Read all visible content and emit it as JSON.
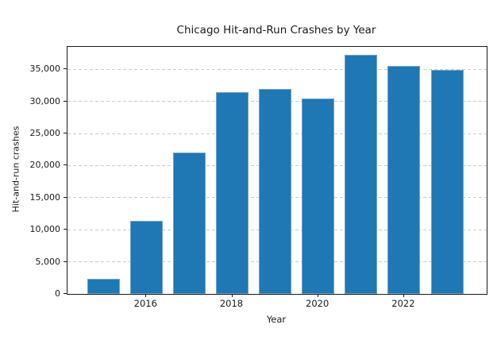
{
  "chart_data": {
    "type": "bar",
    "title": "Chicago Hit-and-Run Crashes by Year",
    "xlabel": "Year",
    "ylabel": "Hit-and-run crashes",
    "categories": [
      "2015",
      "2016",
      "2017",
      "2018",
      "2019",
      "2020",
      "2021",
      "2022",
      "2023"
    ],
    "values": [
      2350,
      11400,
      22050,
      31450,
      31900,
      30400,
      37300,
      35500,
      34900
    ],
    "ylim": [
      0,
      38500
    ],
    "yticks": [
      0,
      5000,
      10000,
      15000,
      20000,
      25000,
      30000,
      35000
    ],
    "ytick_labels": [
      "0",
      "5,000",
      "10,000",
      "15,000",
      "20,000",
      "25,000",
      "30,000",
      "35,000"
    ],
    "xtick_labels": [
      "2016",
      "2018",
      "2020",
      "2022"
    ],
    "grid": "horizontal dashed, behind bars",
    "legend": "none",
    "bar_color": "#1f77b4",
    "bar_edge_color": "#6fa3cc",
    "grid_color": "#c9c9c9",
    "axis_color": "#1a1a1a",
    "background": "#ffffff"
  }
}
